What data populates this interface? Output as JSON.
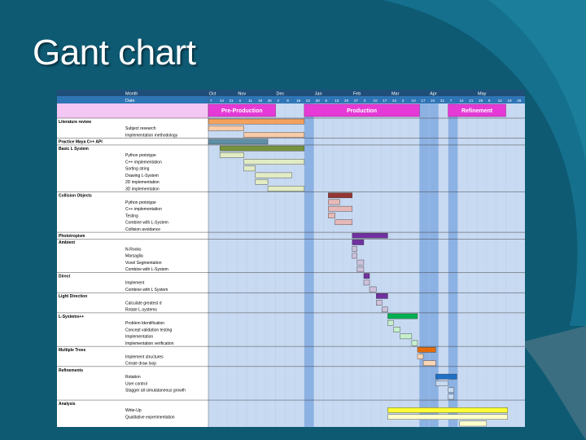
{
  "slide": {
    "title": "Gant chart"
  },
  "colors": {
    "background": "#0e5a73",
    "header_blue": "#2e75b6",
    "phase_row": "#f3c6f3",
    "phase_bar": "#e53ad6",
    "cell_light": "#c8daf2",
    "cell_dark": "#8cb1e3"
  },
  "gantt": {
    "header": {
      "month_label": "Month",
      "date_label": "Date",
      "months": [
        "Oct",
        "Nov",
        "Dec",
        "Jan",
        "Feb",
        "Mar",
        "Apr",
        "May"
      ],
      "dates": [
        "7",
        "14",
        "21",
        "4",
        "11",
        "18",
        "25",
        "2",
        "9",
        "16",
        "23",
        "30",
        "6",
        "13",
        "20",
        "27",
        "3",
        "10",
        "17",
        "24",
        "3",
        "10",
        "17",
        "24",
        "31",
        "7",
        "14",
        "21",
        "28",
        "5",
        "12",
        "19",
        "26"
      ]
    },
    "phases": [
      "Pre-Production",
      "Production",
      "Refinement"
    ],
    "rows": [
      {
        "label": "Literature review",
        "bold": true,
        "bar": {
          "start": 0,
          "end": 10,
          "color": "#f4a15d"
        }
      },
      {
        "label": "Subject research",
        "bold": false,
        "bar": {
          "start": 0,
          "end": 3.7,
          "color": "#f8cba9"
        }
      },
      {
        "label": "Implementation methodology",
        "bold": false,
        "bar": {
          "start": 3.7,
          "end": 10,
          "color": "#f8cba9"
        }
      },
      {
        "label": "Practice Maya C++ API",
        "bold": true,
        "bar": {
          "start": 0,
          "end": 6.2,
          "color": "#5f8fa6"
        }
      },
      {
        "label": "Basic L System",
        "bold": true,
        "bar": {
          "start": 1.2,
          "end": 10,
          "color": "#76923c"
        }
      },
      {
        "label": "Python prototype",
        "bold": false,
        "bar": {
          "start": 1.2,
          "end": 3.7,
          "color": "#e2ecc4"
        }
      },
      {
        "label": "C++ implementation",
        "bold": false,
        "bar": {
          "start": 3.7,
          "end": 10,
          "color": "#e2ecc4"
        }
      },
      {
        "label": "Sorting string",
        "bold": false,
        "bar": {
          "start": 3.7,
          "end": 4.9,
          "color": "#e2ecc4"
        }
      },
      {
        "label": "Drawing L-System",
        "bold": false,
        "bar": {
          "start": 4.9,
          "end": 8.7,
          "color": "#e2ecc4"
        }
      },
      {
        "label": "2D implementation",
        "bold": false,
        "bar": {
          "start": 4.9,
          "end": 6.2,
          "color": "#e2ecc4"
        }
      },
      {
        "label": "3D implementation",
        "bold": false,
        "bar": {
          "start": 6.2,
          "end": 10,
          "color": "#e2ecc4"
        }
      },
      {
        "label": "Collision Objects",
        "bold": true,
        "bar": {
          "start": 12.5,
          "end": 15,
          "color": "#943634"
        }
      },
      {
        "label": "Python prototype",
        "bold": false,
        "bar": {
          "start": 12.5,
          "end": 13.7,
          "color": "#e6b9b8"
        }
      },
      {
        "label": "C++ implementation",
        "bold": false,
        "bar": {
          "start": 12.5,
          "end": 15,
          "color": "#e6b9b8"
        }
      },
      {
        "label": "Testing",
        "bold": false,
        "bar": {
          "start": 12.5,
          "end": 13.2,
          "color": "#e6b9b8"
        }
      },
      {
        "label": "Combine with L-System",
        "bold": false,
        "bar": {
          "start": 13.2,
          "end": 15,
          "color": "#e6b9b8"
        }
      },
      {
        "label": "Collision avoidance",
        "bold": false,
        "bar": null
      },
      {
        "label": "Phototropism",
        "bold": true,
        "bar": {
          "start": 15,
          "end": 18.7,
          "color": "#7030a0"
        }
      },
      {
        "label": "Ambient",
        "bold": true,
        "bar": {
          "start": 15,
          "end": 16.2,
          "color": "#7030a0"
        }
      },
      {
        "label": "N-Rooks",
        "bold": false,
        "bar": {
          "start": 15,
          "end": 15.5,
          "color": "#ccc0da"
        }
      },
      {
        "label": "Marsaglia",
        "bold": false,
        "bar": {
          "start": 15,
          "end": 15.5,
          "color": "#ccc0da"
        }
      },
      {
        "label": "Voxel Segmentation",
        "bold": false,
        "bar": {
          "start": 15.5,
          "end": 16.2,
          "color": "#ccc0da"
        }
      },
      {
        "label": "Combine with L-System",
        "bold": false,
        "bar": {
          "start": 15.5,
          "end": 16.2,
          "color": "#ccc0da"
        }
      },
      {
        "label": "Direct",
        "bold": true,
        "bar": {
          "start": 16.2,
          "end": 16.8,
          "color": "#7030a0"
        }
      },
      {
        "label": "Implement",
        "bold": false,
        "bar": {
          "start": 16.2,
          "end": 16.8,
          "color": "#ccc0da"
        }
      },
      {
        "label": "Combine with L System",
        "bold": false,
        "bar": {
          "start": 16.8,
          "end": 17.5,
          "color": "#ccc0da"
        }
      },
      {
        "label": "Light Direction",
        "bold": true,
        "bar": {
          "start": 17.5,
          "end": 18.7,
          "color": "#7030a0"
        }
      },
      {
        "label": "Calculate greatest d",
        "bold": false,
        "bar": {
          "start": 17.5,
          "end": 18.1,
          "color": "#ccc0da"
        }
      },
      {
        "label": "Rotate L-systems",
        "bold": false,
        "bar": {
          "start": 18.1,
          "end": 18.7,
          "color": "#ccc0da"
        }
      },
      {
        "label": "L-Systems++",
        "bold": true,
        "bar": {
          "start": 18.7,
          "end": 21.8,
          "color": "#00b050"
        }
      },
      {
        "label": "Problem Identification",
        "bold": false,
        "bar": {
          "start": 18.7,
          "end": 19.3,
          "color": "#c6efce"
        }
      },
      {
        "label": "Concept validation testing",
        "bold": false,
        "bar": {
          "start": 19.3,
          "end": 20,
          "color": "#c6efce"
        }
      },
      {
        "label": "Implementation",
        "bold": false,
        "bar": {
          "start": 20,
          "end": 21.2,
          "color": "#c6efce"
        }
      },
      {
        "label": "Implementation verification",
        "bold": false,
        "bar": {
          "start": 21.2,
          "end": 21.8,
          "color": "#c6efce"
        }
      },
      {
        "label": "Multiple Trees",
        "bold": true,
        "bar": {
          "start": 21.8,
          "end": 23.7,
          "color": "#e46c0a"
        }
      },
      {
        "label": "Implement structures",
        "bold": false,
        "bar": {
          "start": 21.8,
          "end": 22.4,
          "color": "#fbd4b4"
        }
      },
      {
        "label": "Create draw loop",
        "bold": false,
        "bar": {
          "start": 22.4,
          "end": 23.7,
          "color": "#fbd4b4"
        }
      },
      {
        "label": "Refinements",
        "bold": true,
        "bar": null
      },
      {
        "label": "Rotation",
        "bold": false,
        "bar": {
          "start": 23.7,
          "end": 25.9,
          "color": "#1f6fc5"
        }
      },
      {
        "label": "User control",
        "bold": false,
        "bar": {
          "start": 23.7,
          "end": 25,
          "color": "#c6d9f1"
        }
      },
      {
        "label": "Stagger all simulataneous growth",
        "bold": false,
        "bar": {
          "start": 25,
          "end": 25.6,
          "color": "#c6d9f1"
        }
      },
      {
        "label": "",
        "bold": false,
        "bar": {
          "start": 25,
          "end": 25.6,
          "color": "#c6d9f1"
        }
      },
      {
        "label": "Analysis",
        "bold": true,
        "bar": null
      },
      {
        "label": "Write-Up",
        "bold": false,
        "bar": {
          "start": 18.7,
          "end": 31.2,
          "color": "#ffff33"
        }
      },
      {
        "label": "Qualitative experimentation",
        "bold": false,
        "bar": {
          "start": 18.7,
          "end": 31.2,
          "color": "#ffffcc"
        }
      },
      {
        "label": "",
        "bold": false,
        "bar": {
          "start": 26.2,
          "end": 29,
          "color": "#ffffcc"
        }
      }
    ]
  }
}
